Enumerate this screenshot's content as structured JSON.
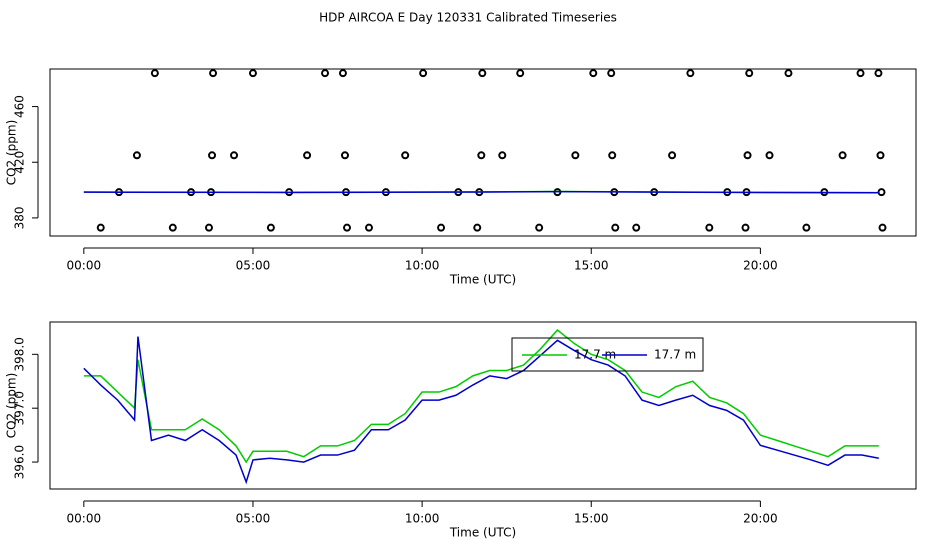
{
  "title": "HDP AIRCOA E  Day 120331  Calibrated Timeseries",
  "chart_data": [
    {
      "type": "scatter",
      "xlabel": "Time (UTC)",
      "ylabel": "CO2 (ppm)",
      "xlim": [
        -1.0,
        24.6
      ],
      "ylim": [
        367,
        487
      ],
      "xticks": [
        {
          "value": 0,
          "label": "00:00"
        },
        {
          "value": 5,
          "label": "05:00"
        },
        {
          "value": 10,
          "label": "10:00"
        },
        {
          "value": 15,
          "label": "15:00"
        },
        {
          "value": 20,
          "label": "20:00"
        }
      ],
      "yticks": [
        380,
        420,
        460
      ],
      "series": [
        {
          "style": "points",
          "color": "#000000",
          "x": [
            2.1,
            3.82,
            5.0,
            7.13,
            7.66,
            10.03,
            11.78,
            12.9,
            15.06,
            15.59,
            17.93,
            19.67,
            20.83,
            22.96,
            23.49,
            1.57,
            3.79,
            4.44,
            6.6,
            7.72,
            9.5,
            11.75,
            12.37,
            14.53,
            15.62,
            17.39,
            19.62,
            20.27,
            22.43,
            23.55,
            1.04,
            3.17,
            3.76,
            6.07,
            7.75,
            8.93,
            11.07,
            11.69,
            14.0,
            15.68,
            16.86,
            19.02,
            19.59,
            21.89,
            23.58,
            0.5,
            2.63,
            3.7,
            5.53,
            7.78,
            8.43,
            10.56,
            11.63,
            13.46,
            15.71,
            16.33,
            18.49,
            19.56,
            21.36,
            23.61
          ],
          "values": [
            484,
            484,
            484,
            484,
            484,
            484,
            484,
            484,
            484,
            484,
            484,
            484,
            484,
            484,
            484,
            425,
            425,
            425,
            425,
            425,
            425,
            425,
            425,
            425,
            425,
            425,
            425,
            425,
            425,
            425,
            398.5,
            398.5,
            398.5,
            398.5,
            398.5,
            398.5,
            398.5,
            398.5,
            398.5,
            398.5,
            398.5,
            398.5,
            398.5,
            398.5,
            398.5,
            373,
            373,
            373,
            373,
            373,
            373,
            373,
            373,
            373,
            373,
            373,
            373,
            373,
            373,
            373
          ]
        },
        {
          "style": "line",
          "color": "#00cc00",
          "x": [
            0,
            6,
            12,
            14,
            18,
            23.5
          ],
          "values": [
            398.6,
            398.4,
            398.7,
            399.0,
            398.5,
            398.2
          ]
        },
        {
          "style": "line",
          "color": "#0000cc",
          "x": [
            0,
            6,
            12,
            14,
            18,
            23.5
          ],
          "values": [
            398.5,
            398.3,
            398.6,
            398.9,
            398.4,
            398.1
          ]
        }
      ]
    },
    {
      "type": "line",
      "xlabel": "Time (UTC)",
      "ylabel": "CO2 (ppm)",
      "xlim": [
        -1.0,
        24.6
      ],
      "ylim": [
        395.5,
        398.6
      ],
      "xticks": [
        {
          "value": 0,
          "label": "00:00"
        },
        {
          "value": 5,
          "label": "05:00"
        },
        {
          "value": 10,
          "label": "10:00"
        },
        {
          "value": 15,
          "label": "15:00"
        },
        {
          "value": 20,
          "label": "20:00"
        }
      ],
      "yticks": [
        {
          "value": 396,
          "label": "396.0"
        },
        {
          "value": 397,
          "label": "397.0"
        },
        {
          "value": 398,
          "label": "398.0"
        }
      ],
      "series": [
        {
          "name": "17.7 m",
          "color": "#00cc00",
          "x": [
            0,
            0.5,
            1.0,
            1.5,
            1.6,
            2.0,
            2.5,
            3.0,
            3.5,
            4.0,
            4.5,
            4.8,
            5.0,
            5.5,
            6.0,
            6.5,
            7.0,
            7.5,
            8.0,
            8.5,
            9.0,
            9.5,
            10.0,
            10.5,
            11.0,
            11.5,
            12.0,
            12.5,
            13.0,
            13.5,
            14.0,
            14.5,
            15.0,
            15.5,
            16.0,
            16.5,
            17.0,
            17.5,
            18.0,
            18.5,
            19.0,
            19.5,
            20.0,
            20.5,
            21.0,
            21.5,
            22.0,
            22.5,
            23.0,
            23.5
          ],
          "values": [
            397.6,
            397.6,
            397.3,
            397.0,
            397.9,
            396.6,
            396.6,
            396.6,
            396.8,
            396.6,
            396.3,
            396.0,
            396.2,
            396.2,
            396.2,
            396.1,
            396.3,
            396.3,
            396.4,
            396.7,
            396.7,
            396.9,
            397.3,
            397.3,
            397.4,
            397.6,
            397.7,
            397.7,
            397.8,
            398.1,
            398.45,
            398.2,
            398.0,
            397.9,
            397.7,
            397.3,
            397.2,
            397.4,
            397.5,
            397.2,
            397.1,
            396.9,
            396.5,
            396.4,
            396.3,
            396.2,
            396.1,
            396.3,
            396.3,
            396.3
          ]
        },
        {
          "name": "17.7 m",
          "color": "#0000cc",
          "x": [
            0,
            0.5,
            1.0,
            1.5,
            1.6,
            2.0,
            2.5,
            3.0,
            3.5,
            4.0,
            4.5,
            4.8,
            5.0,
            5.5,
            6.0,
            6.5,
            7.0,
            7.5,
            8.0,
            8.5,
            9.0,
            9.5,
            10.0,
            10.5,
            11.0,
            11.5,
            12.0,
            12.5,
            13.0,
            13.5,
            14.0,
            14.5,
            15.0,
            15.5,
            16.0,
            16.5,
            17.0,
            17.5,
            18.0,
            18.5,
            19.0,
            19.5,
            20.0,
            20.5,
            21.0,
            21.5,
            22.0,
            22.5,
            23.0,
            23.5
          ],
          "values": [
            397.74,
            397.43,
            397.15,
            396.78,
            398.33,
            396.4,
            396.5,
            396.4,
            396.6,
            396.4,
            396.13,
            395.63,
            396.04,
            396.07,
            396.04,
            396.0,
            396.13,
            396.13,
            396.22,
            396.6,
            396.6,
            396.78,
            397.15,
            397.15,
            397.24,
            397.43,
            397.6,
            397.55,
            397.7,
            397.98,
            398.26,
            398.07,
            397.9,
            397.8,
            397.6,
            397.15,
            397.05,
            397.15,
            397.24,
            397.05,
            396.96,
            396.78,
            396.31,
            396.22,
            396.13,
            396.04,
            395.94,
            396.13,
            396.13,
            396.07
          ]
        }
      ]
    }
  ]
}
